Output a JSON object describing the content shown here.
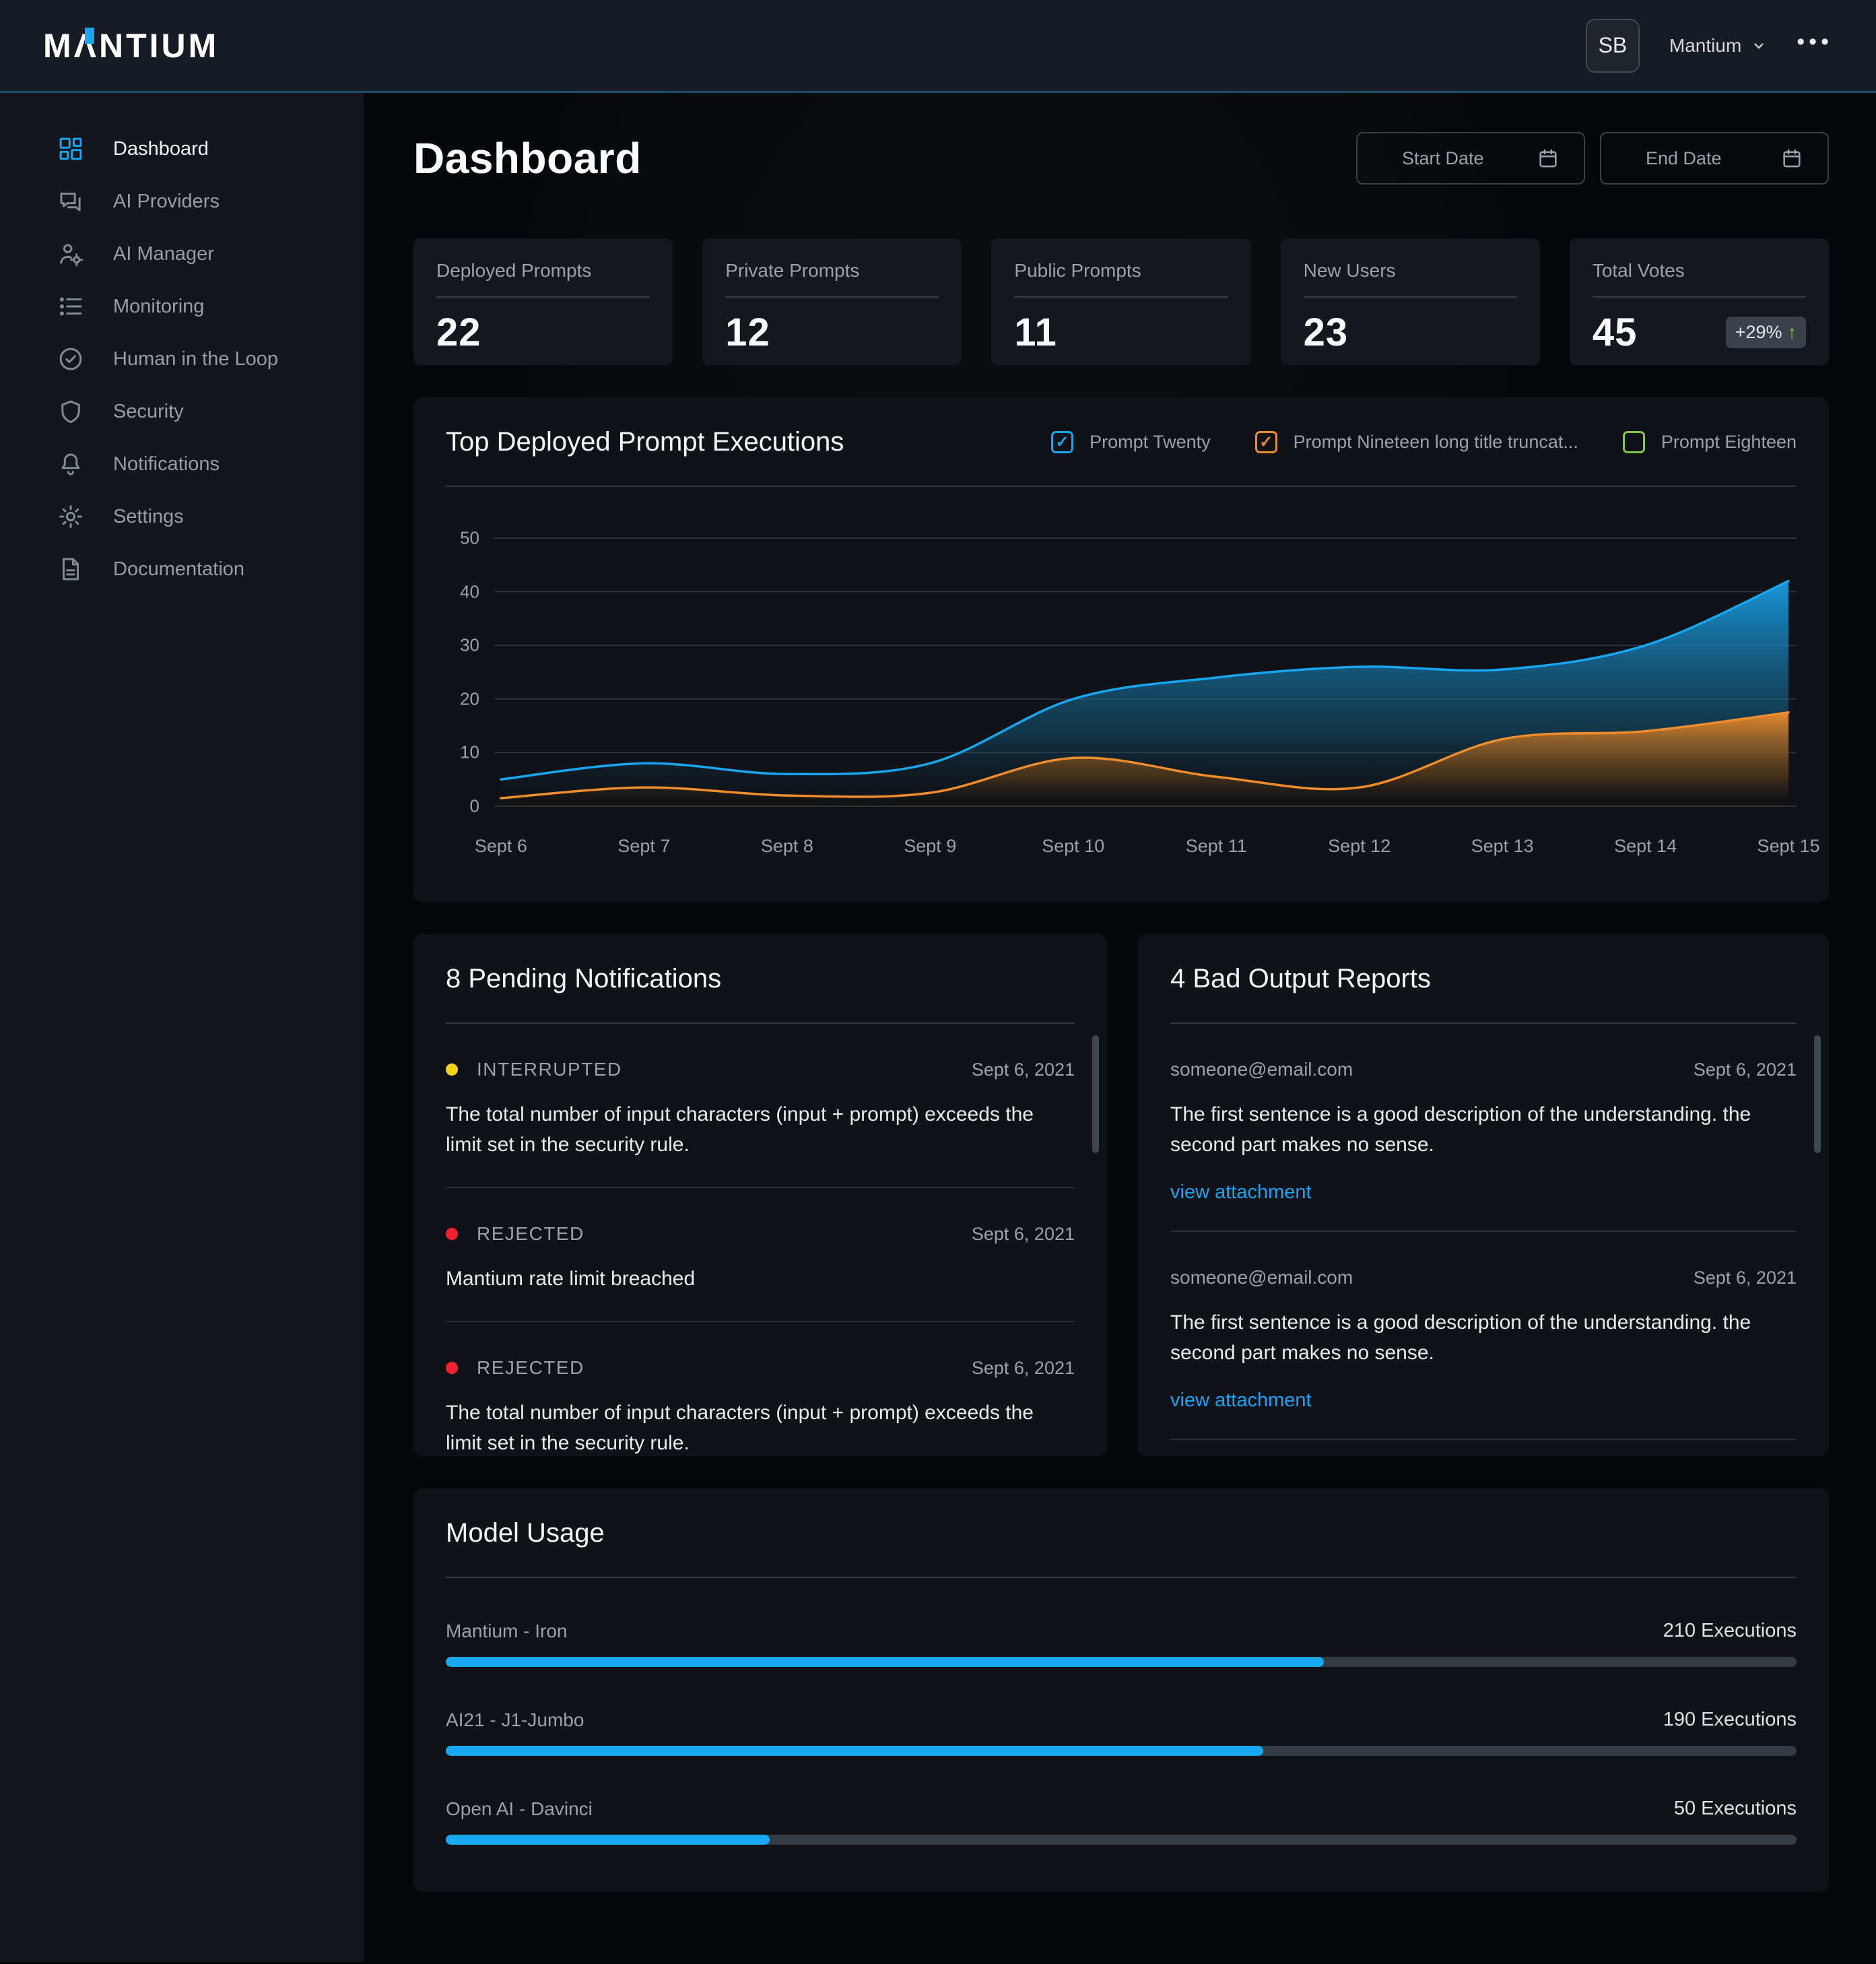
{
  "brand": {
    "name": "MANTIUM",
    "logo_text": "MΛNTIUM",
    "accent_color": "#18a6f2"
  },
  "header": {
    "avatar_initials": "SB",
    "org_name": "Mantium",
    "menu_icon": "ellipsis-icon",
    "menu_glyph": "•••"
  },
  "sidebar": {
    "items": [
      {
        "label": "Dashboard",
        "icon": "dashboard-grid-icon",
        "active": true
      },
      {
        "label": "AI Providers",
        "icon": "chat-icon",
        "active": false
      },
      {
        "label": "AI Manager",
        "icon": "person-gear-icon",
        "active": false
      },
      {
        "label": "Monitoring",
        "icon": "list-icon",
        "active": false
      },
      {
        "label": "Human in the Loop",
        "icon": "check-circle-icon",
        "active": false
      },
      {
        "label": "Security",
        "icon": "shield-icon",
        "active": false
      },
      {
        "label": "Notifications",
        "icon": "bell-icon",
        "active": false
      },
      {
        "label": "Settings",
        "icon": "gear-icon",
        "active": false
      },
      {
        "label": "Documentation",
        "icon": "document-icon",
        "active": false
      }
    ]
  },
  "page": {
    "title": "Dashboard",
    "start_date_placeholder": "Start Date",
    "end_date_placeholder": "End Date"
  },
  "stats": [
    {
      "label": "Deployed Prompts",
      "value": "22"
    },
    {
      "label": "Private Prompts",
      "value": "12"
    },
    {
      "label": "Public Prompts",
      "value": "11"
    },
    {
      "label": "New Users",
      "value": "23"
    },
    {
      "label": "Total Votes",
      "value": "45",
      "badge": "+29%",
      "badge_arrow": "↑",
      "badge_arrow_color": "#84c64a"
    }
  ],
  "chart_data": [
    {
      "type": "area",
      "title": "Top Deployed Prompt Executions",
      "x_labels": [
        "Sept 6",
        "Sept 7",
        "Sept 8",
        "Sept 9",
        "Sept 10",
        "Sept 11",
        "Sept 12",
        "Sept 13",
        "Sept 14",
        "Sept 15"
      ],
      "y_ticks": [
        0,
        10,
        20,
        30,
        40,
        50
      ],
      "ylim": [
        0,
        50
      ],
      "grid": true,
      "legend_position": "top-right",
      "series": [
        {
          "name": "Prompt Twenty",
          "color": "#18a6f2",
          "checked": true,
          "values": [
            5,
            8,
            6,
            8,
            20,
            24,
            26,
            25.5,
            30,
            42
          ]
        },
        {
          "name": "Prompt Nineteen long title truncat...",
          "color": "#ef8d2e",
          "checked": true,
          "values": [
            1.5,
            3.5,
            2,
            2.5,
            9,
            5.5,
            3.5,
            12.5,
            14,
            17.5
          ]
        },
        {
          "name": "Prompt Eighteen",
          "color": "#84c64a",
          "checked": false,
          "values": []
        }
      ]
    },
    {
      "type": "bar",
      "title": "Model Usage",
      "categories": [
        "Mantium - Iron",
        "AI21 - J1-Jumbo",
        "Open AI - Davinci"
      ],
      "values": [
        210,
        190,
        50
      ],
      "value_labels": [
        "210 Executions",
        "190 Executions",
        "50 Executions"
      ],
      "bar_percents": [
        65,
        60.5,
        24
      ],
      "bar_color": "#18a8f2"
    }
  ],
  "notifications": {
    "title": "8 Pending Notifications",
    "items": [
      {
        "status": "INTERRUPTED",
        "dot_color": "#f5d319",
        "date": "Sept 6, 2021",
        "message": "The total number of input characters (input + prompt) exceeds the limit set in the security rule."
      },
      {
        "status": "REJECTED",
        "dot_color": "#f5222d",
        "date": "Sept 6, 2021",
        "message": "Mantium rate limit breached"
      },
      {
        "status": "REJECTED",
        "dot_color": "#f5222d",
        "date": "Sept 6, 2021",
        "message": "The total number of input characters (input + prompt) exceeds the limit set in the security rule."
      }
    ]
  },
  "reports": {
    "title": "4 Bad Output Reports",
    "items": [
      {
        "email": "someone@email.com",
        "date": "Sept 6, 2021",
        "message": "The first sentence is a good description of the understanding. the second part makes no sense.",
        "link": "view attachment"
      },
      {
        "email": "someone@email.com",
        "date": "Sept 6, 2021",
        "message": "The first sentence is a good description of the understanding. the second part makes no sense.",
        "link": "view attachment"
      }
    ]
  }
}
